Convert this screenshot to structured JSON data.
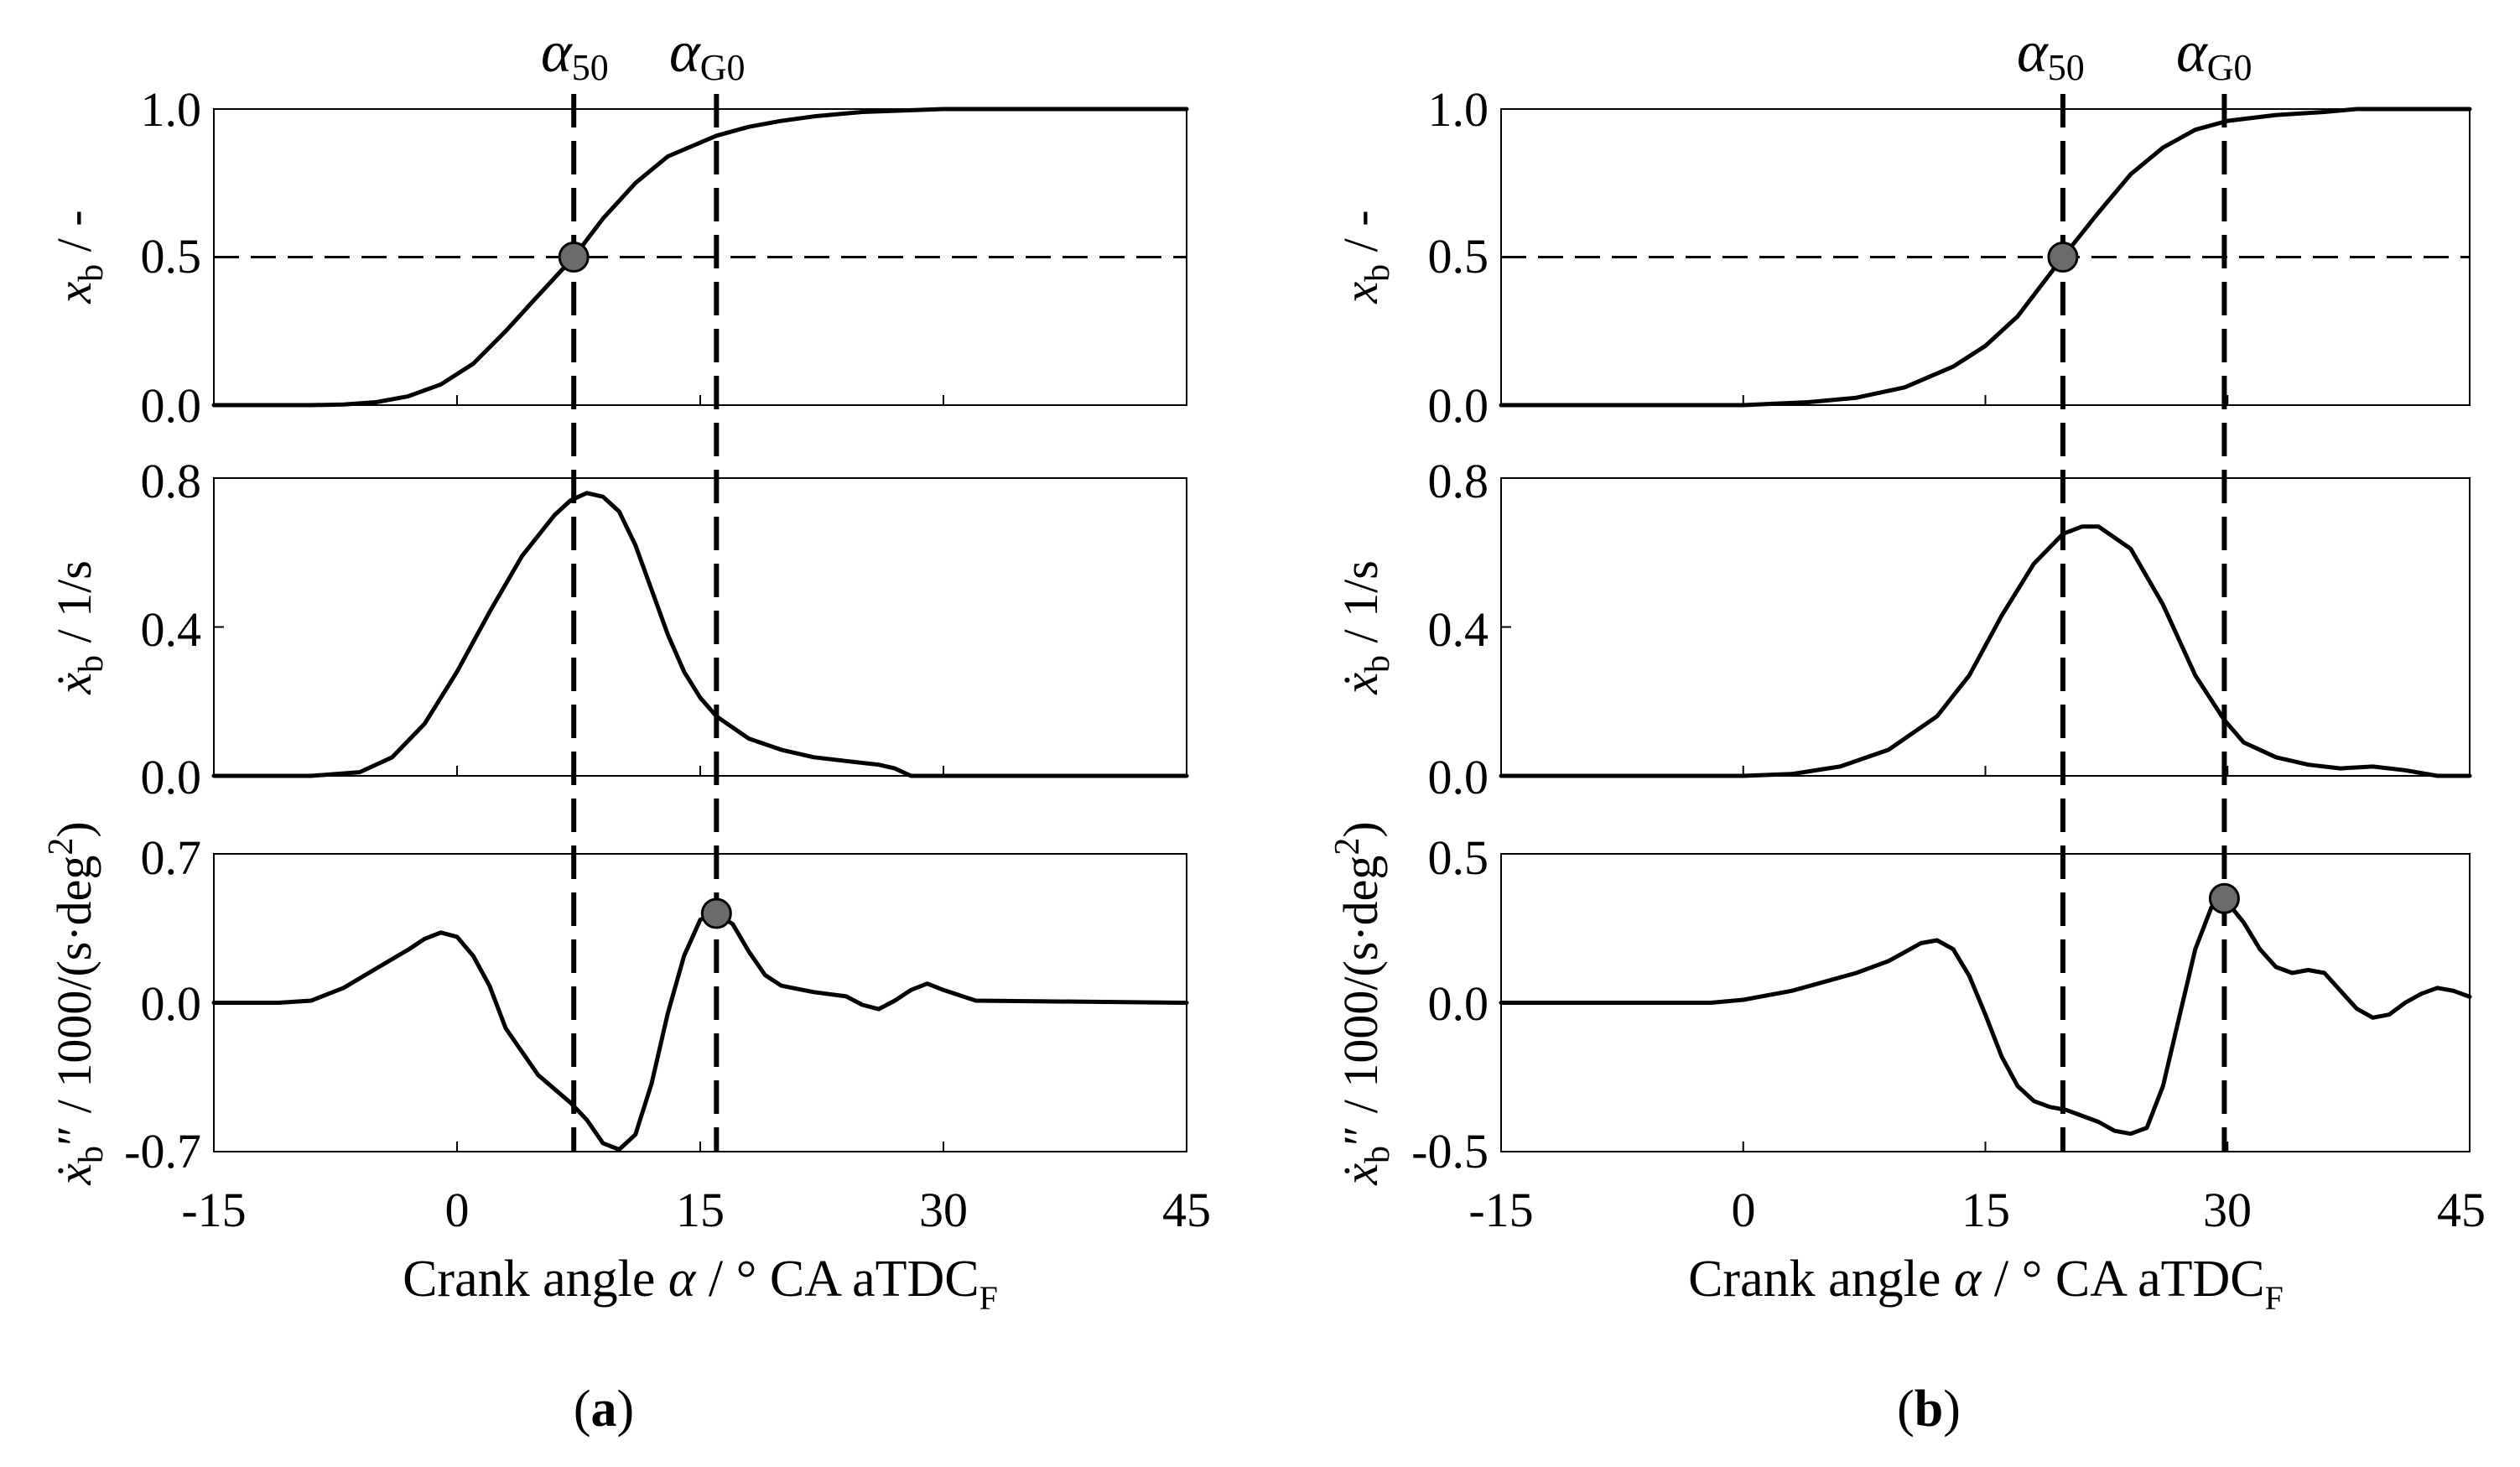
{
  "figure": {
    "panels": [
      {
        "label": "(a)",
        "label_open": "(",
        "label_letter": "a",
        "label_close": ")",
        "xlabel_prefix": "Crank angle ",
        "xlabel_symbol": "α",
        "xlabel_suffix": " / ° CA aTDC",
        "xlabel_sub": "F",
        "x_ticks": [
          "-15",
          "0",
          "15",
          "30",
          "45"
        ],
        "markers": [
          {
            "symbol": "α",
            "sub": "50",
            "x": 7.2
          },
          {
            "symbol": "α",
            "sub": "G0",
            "x": 16.0
          }
        ]
      },
      {
        "label": "(b)",
        "label_open": "(",
        "label_letter": "b",
        "label_close": ")",
        "xlabel_prefix": "Crank angle ",
        "xlabel_symbol": "α",
        "xlabel_suffix": " / ° CA aTDC",
        "xlabel_sub": "F",
        "x_ticks": [
          "-15",
          "0",
          "15",
          "30",
          "45"
        ],
        "markers": [
          {
            "symbol": "α",
            "sub": "50",
            "x": 19.8
          },
          {
            "symbol": "α",
            "sub": "G0",
            "x": 29.8
          }
        ]
      }
    ],
    "y_labels": {
      "xb": {
        "var": "x",
        "sub": "b",
        "unit": " / -"
      },
      "dxb": {
        "var": "ẋ",
        "sub": "b",
        "unit": " / 1/s"
      },
      "ddxb": {
        "var": "ẋ",
        "sub": "b",
        "prime": "″",
        "unit": " / 1000/(s·deg",
        "sup": "2",
        "close": ")"
      }
    }
  },
  "chart_data": [
    {
      "type": "line",
      "panel": "a",
      "title": "",
      "xlabel": "Crank angle α / ° CA aTDC F",
      "xlim": [
        -15,
        45
      ],
      "x_ticks": [
        -15,
        0,
        15,
        30,
        45
      ],
      "subplots": [
        {
          "name": "x_b",
          "ylabel": "x_b / -",
          "ylim": [
            0,
            1
          ],
          "y_ticks": [
            "0.0",
            "0.5",
            "1.0"
          ],
          "reference_line_y": 0.5,
          "highlight_point": {
            "x": 7.2,
            "y": 0.5
          },
          "x": [
            -15,
            -9,
            -7,
            -5,
            -3,
            -1,
            1,
            3,
            5,
            7.2,
            9,
            11,
            13,
            16,
            18,
            20,
            22,
            25,
            30,
            35,
            45
          ],
          "y": [
            0,
            0,
            0.002,
            0.01,
            0.03,
            0.07,
            0.14,
            0.25,
            0.37,
            0.5,
            0.63,
            0.75,
            0.84,
            0.91,
            0.94,
            0.96,
            0.975,
            0.99,
            1.0,
            1.0,
            1.0
          ]
        },
        {
          "name": "dx_b",
          "ylabel": "ẋ_b / 1/s",
          "ylim": [
            0,
            0.8
          ],
          "y_ticks": [
            "0.0",
            "0.4",
            "0.8"
          ],
          "x": [
            -15,
            -9,
            -6,
            -4,
            -2,
            0,
            2,
            4,
            6,
            7,
            8,
            9,
            10,
            11,
            12,
            13,
            14,
            15,
            16,
            18,
            20,
            22,
            24,
            26,
            27,
            28,
            30,
            45
          ],
          "y": [
            0,
            0,
            0.01,
            0.05,
            0.14,
            0.28,
            0.44,
            0.59,
            0.7,
            0.74,
            0.76,
            0.75,
            0.71,
            0.62,
            0.5,
            0.38,
            0.28,
            0.21,
            0.16,
            0.1,
            0.07,
            0.05,
            0.04,
            0.03,
            0.02,
            0,
            0,
            0
          ]
        },
        {
          "name": "ddx_b",
          "ylabel": "ẋ_b'' / 1000/(s·deg²)",
          "ylim": [
            -0.7,
            0.7
          ],
          "y_ticks": [
            "-0.7",
            "0.0",
            "0.7"
          ],
          "highlight_point": {
            "x": 16.0,
            "y": 0.42
          },
          "x": [
            -15,
            -11,
            -9,
            -7,
            -5,
            -3,
            -2,
            -1,
            0,
            1,
            2,
            3,
            5,
            7,
            8,
            9,
            10,
            11,
            12,
            13,
            14,
            15,
            16,
            17,
            18,
            19,
            20,
            22,
            24,
            25,
            26,
            27,
            28,
            29,
            30,
            32,
            45
          ],
          "y": [
            0,
            0,
            0.01,
            0.07,
            0.16,
            0.25,
            0.3,
            0.33,
            0.31,
            0.22,
            0.08,
            -0.12,
            -0.34,
            -0.47,
            -0.55,
            -0.66,
            -0.69,
            -0.62,
            -0.38,
            -0.05,
            0.22,
            0.39,
            0.42,
            0.37,
            0.24,
            0.13,
            0.08,
            0.05,
            0.03,
            -0.01,
            -0.03,
            0.01,
            0.06,
            0.09,
            0.06,
            0.01,
            0
          ]
        }
      ]
    },
    {
      "type": "line",
      "panel": "b",
      "title": "",
      "xlabel": "Crank angle α / ° CA aTDC F",
      "xlim": [
        -15,
        45
      ],
      "x_ticks": [
        -15,
        0,
        15,
        30,
        45
      ],
      "subplots": [
        {
          "name": "x_b",
          "ylabel": "x_b / -",
          "ylim": [
            0,
            1
          ],
          "y_ticks": [
            "0.0",
            "0.5",
            "1.0"
          ],
          "reference_line_y": 0.5,
          "highlight_point": {
            "x": 19.8,
            "y": 0.5
          },
          "x": [
            -15,
            0,
            4,
            7,
            10,
            13,
            15,
            17,
            19.8,
            22,
            24,
            26,
            28,
            30,
            33,
            36,
            38,
            40,
            45
          ],
          "y": [
            0,
            0,
            0.01,
            0.025,
            0.06,
            0.13,
            0.2,
            0.3,
            0.5,
            0.65,
            0.78,
            0.87,
            0.93,
            0.96,
            0.98,
            0.99,
            1.0,
            1.0,
            1.0
          ]
        },
        {
          "name": "dx_b",
          "ylabel": "ẋ_b / 1/s",
          "ylim": [
            0,
            0.8
          ],
          "y_ticks": [
            "0.0",
            "0.4",
            "0.8"
          ],
          "x": [
            -15,
            0,
            3,
            6,
            9,
            12,
            14,
            16,
            18,
            19.8,
            21,
            22,
            24,
            26,
            28,
            29.8,
            31,
            33,
            35,
            37,
            39,
            41,
            43,
            45
          ],
          "y": [
            0,
            0,
            0.005,
            0.025,
            0.07,
            0.16,
            0.27,
            0.43,
            0.57,
            0.65,
            0.67,
            0.67,
            0.61,
            0.46,
            0.27,
            0.15,
            0.09,
            0.05,
            0.03,
            0.02,
            0.025,
            0.015,
            0,
            0
          ]
        },
        {
          "name": "ddx_b",
          "ylabel": "ẋ_b'' / 1000/(s·deg²)",
          "ylim": [
            -0.5,
            0.5
          ],
          "y_ticks": [
            "-0.5",
            "0.0",
            "0.5"
          ],
          "highlight_point": {
            "x": 29.8,
            "y": 0.35
          },
          "x": [
            -15,
            -2,
            0,
            3,
            5,
            7,
            9,
            10,
            11,
            12,
            13,
            14,
            15,
            16,
            17,
            18,
            19,
            20,
            21,
            22,
            23,
            24,
            25,
            26,
            27,
            28,
            29,
            29.8,
            31,
            32,
            33,
            34,
            35,
            36,
            37,
            38,
            39,
            40,
            41,
            42,
            43,
            44,
            45
          ],
          "y": [
            0,
            0,
            0.01,
            0.04,
            0.07,
            0.1,
            0.14,
            0.17,
            0.2,
            0.21,
            0.18,
            0.09,
            -0.04,
            -0.18,
            -0.28,
            -0.33,
            -0.35,
            -0.36,
            -0.38,
            -0.4,
            -0.43,
            -0.44,
            -0.42,
            -0.28,
            -0.05,
            0.18,
            0.32,
            0.35,
            0.27,
            0.18,
            0.12,
            0.1,
            0.11,
            0.1,
            0.04,
            -0.02,
            -0.05,
            -0.04,
            0,
            0.03,
            0.05,
            0.04,
            0.02
          ]
        }
      ]
    }
  ]
}
